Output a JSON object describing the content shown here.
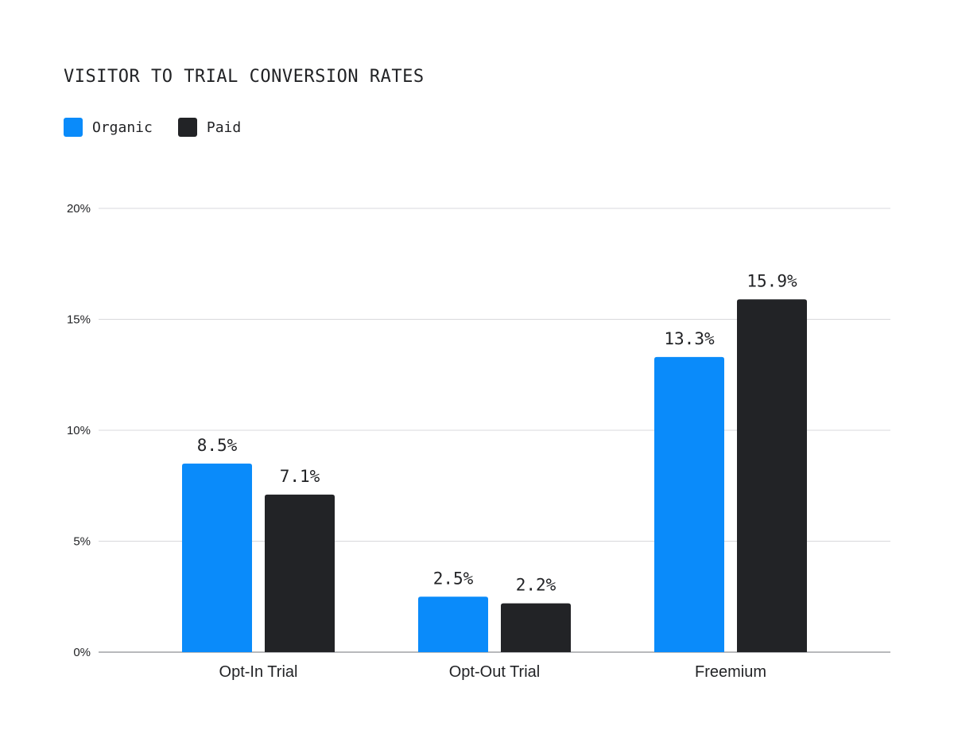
{
  "chart_data": {
    "type": "bar",
    "title": "VISITOR TO TRIAL CONVERSION RATES",
    "categories": [
      "Opt-In Trial",
      "Opt-Out Trial",
      "Freemium"
    ],
    "series": [
      {
        "name": "Organic",
        "color": "#0A8BFA",
        "values": [
          8.5,
          2.5,
          13.3
        ],
        "labels": [
          "8.5%",
          "2.5%",
          "13.3%"
        ]
      },
      {
        "name": "Paid",
        "color": "#222326",
        "values": [
          7.1,
          2.2,
          15.9
        ],
        "labels": [
          "7.1%",
          "2.2%",
          "15.9%"
        ]
      }
    ],
    "ylim": [
      0,
      20
    ],
    "y_ticks": [
      0,
      5,
      10,
      15,
      20
    ],
    "y_tick_labels": [
      "0%",
      "5%",
      "10%",
      "15%",
      "20%"
    ],
    "xlabel": "",
    "ylabel": "",
    "grid": true,
    "legend_position": "top-left"
  }
}
